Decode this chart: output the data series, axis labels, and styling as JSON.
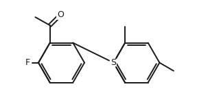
{
  "bg_color": "#ffffff",
  "bond_color": "#1a1a1a",
  "text_color": "#1a1a1a",
  "line_width": 1.4,
  "fig_width": 2.87,
  "fig_height": 1.52,
  "dpi": 100,
  "xlim": [
    0,
    10
  ],
  "ylim": [
    0,
    5.3
  ]
}
